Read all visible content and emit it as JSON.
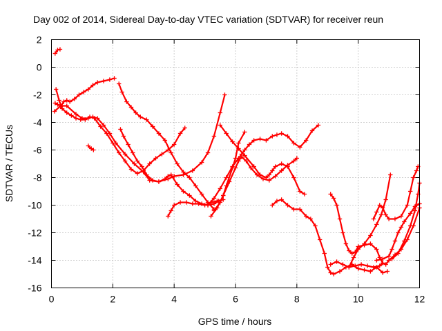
{
  "chart_data": {
    "type": "scatter",
    "title": "Day 002 of 2014, Sidereal Day-to-day VTEC variation (SDTVAR) for receiver reun",
    "xlabel": "GPS time / hours",
    "ylabel": "SDTVAR / TECUs",
    "xlim": [
      0,
      12
    ],
    "ylim": [
      -16,
      2
    ],
    "xticks": [
      0,
      2,
      4,
      6,
      8,
      10,
      12
    ],
    "yticks": [
      -16,
      -14,
      -12,
      -10,
      -8,
      -6,
      -4,
      -2,
      0,
      2
    ],
    "grid": true,
    "marker": "plus",
    "color": "#ff0000",
    "series": [
      {
        "x": [
          0.12,
          0.2,
          0.28
        ],
        "y": [
          1.0,
          1.25,
          1.3
        ]
      },
      {
        "x": [
          0.12,
          0.2,
          0.3,
          0.4,
          0.5,
          0.6,
          0.75,
          0.9,
          1.05,
          1.2,
          1.35,
          1.5,
          1.7,
          1.9,
          2.05
        ],
        "y": [
          -2.6,
          -2.7,
          -2.85,
          -2.5,
          -2.4,
          -2.5,
          -2.3,
          -2.0,
          -1.8,
          -1.6,
          -1.3,
          -1.1,
          -1.0,
          -0.9,
          -0.8
        ]
      },
      {
        "x": [
          0.15,
          0.25,
          0.35,
          0.5,
          0.65,
          0.8,
          0.95,
          1.1,
          1.25,
          1.4,
          1.6,
          1.8,
          2.0,
          2.2,
          2.4,
          2.6,
          2.8,
          3.0,
          3.2,
          3.4,
          3.6,
          3.8,
          4.0,
          4.2,
          4.35
        ],
        "y": [
          -1.6,
          -2.4,
          -3.0,
          -3.3,
          -3.5,
          -3.7,
          -3.8,
          -3.8,
          -3.6,
          -3.7,
          -4.3,
          -4.8,
          -5.5,
          -6.2,
          -6.8,
          -7.4,
          -7.7,
          -7.5,
          -7.0,
          -6.6,
          -6.3,
          -6.0,
          -5.6,
          -4.8,
          -4.4
        ]
      },
      {
        "x": [
          0.1,
          0.3,
          0.5,
          0.8,
          1.0,
          1.2,
          1.35,
          1.5,
          1.7,
          1.9,
          2.1,
          2.4,
          2.7,
          3.0,
          3.2,
          3.5,
          3.8,
          4.0,
          4.3,
          4.6,
          4.9,
          5.1,
          5.3,
          5.5,
          5.65
        ],
        "y": [
          -3.2,
          -2.8,
          -2.8,
          -3.4,
          -3.7,
          -3.7,
          -3.6,
          -3.7,
          -4.2,
          -4.8,
          -5.5,
          -6.3,
          -7.0,
          -7.6,
          -8.2,
          -8.3,
          -8.1,
          -7.9,
          -7.8,
          -7.5,
          -6.9,
          -6.2,
          -5.0,
          -3.3,
          -2.0
        ]
      },
      {
        "x": [
          1.2,
          1.3,
          1.37
        ],
        "y": [
          -5.7,
          -5.9,
          -6.0
        ]
      },
      {
        "x": [
          2.2,
          2.3,
          2.45,
          2.6,
          2.75,
          2.9,
          3.1,
          3.3,
          3.5,
          3.7,
          3.9,
          4.1,
          4.3,
          4.5,
          4.7,
          4.9,
          5.1,
          5.3
        ],
        "y": [
          -1.2,
          -1.8,
          -2.5,
          -2.9,
          -3.3,
          -3.6,
          -3.8,
          -4.3,
          -4.8,
          -5.3,
          -6.2,
          -7.0,
          -7.6,
          -8.0,
          -8.6,
          -9.2,
          -9.8,
          -10.3
        ]
      },
      {
        "x": [
          2.25,
          2.35,
          2.5,
          2.65,
          2.8,
          2.95,
          3.1,
          3.3,
          3.5,
          3.7,
          3.8,
          3.9,
          4.1,
          4.3,
          4.5,
          4.7,
          4.9,
          5.1,
          5.3,
          5.45
        ],
        "y": [
          -4.5,
          -5.0,
          -5.6,
          -6.2,
          -6.8,
          -7.2,
          -7.8,
          -8.2,
          -8.3,
          -8.1,
          -7.9,
          -7.8,
          -8.5,
          -9.0,
          -9.3,
          -9.7,
          -9.9,
          -10.0,
          -9.9,
          -9.7
        ]
      },
      {
        "x": [
          3.8,
          3.9,
          4.0,
          4.2,
          4.4,
          4.6,
          4.8,
          5.0,
          5.2,
          5.4,
          5.6
        ],
        "y": [
          -10.8,
          -10.4,
          -10.0,
          -9.8,
          -9.8,
          -9.9,
          -9.9,
          -10.0,
          -9.8,
          -9.7,
          -9.6
        ]
      },
      {
        "x": [
          5.5,
          5.7,
          5.9,
          6.1,
          6.3,
          6.6,
          6.8,
          7.0,
          7.1,
          7.2,
          7.3,
          7.5,
          7.7,
          7.9,
          8.1,
          8.25
        ],
        "y": [
          -4.2,
          -4.8,
          -5.4,
          -5.9,
          -6.4,
          -7.2,
          -7.8,
          -8.0,
          -7.8,
          -7.5,
          -7.2,
          -7.0,
          -7.2,
          -8.0,
          -9.0,
          -9.2
        ]
      },
      {
        "x": [
          5.1,
          5.3,
          5.5,
          5.7,
          5.9,
          6.1,
          6.2,
          6.3,
          6.45,
          6.6,
          6.8,
          7.0,
          7.2,
          7.35,
          7.5,
          7.7,
          7.9,
          8.1,
          8.3,
          8.5,
          8.7
        ],
        "y": [
          -10.0,
          -9.5,
          -8.8,
          -8.0,
          -7.2,
          -6.6,
          -6.3,
          -6.0,
          -5.6,
          -5.3,
          -5.2,
          -5.3,
          -5.0,
          -4.9,
          -4.8,
          -5.0,
          -5.5,
          -5.8,
          -5.3,
          -4.6,
          -4.2
        ]
      },
      {
        "x": [
          5.2,
          5.4,
          5.6,
          5.8,
          6.0,
          6.1,
          6.2,
          6.35,
          6.5,
          6.7,
          6.9,
          7.1,
          7.3,
          7.5,
          7.7,
          7.9,
          8.0
        ],
        "y": [
          -10.8,
          -10.2,
          -9.3,
          -8.3,
          -7.3,
          -6.8,
          -6.5,
          -6.8,
          -7.3,
          -7.8,
          -8.1,
          -8.2,
          -7.9,
          -7.5,
          -7.1,
          -6.8,
          -6.6
        ]
      },
      {
        "x": [
          5.3,
          5.5,
          5.6,
          5.7,
          5.9,
          6.0,
          6.1,
          6.3
        ],
        "y": [
          -10.4,
          -9.8,
          -9.3,
          -8.6,
          -7.3,
          -6.6,
          -5.5,
          -4.7
        ]
      },
      {
        "x": [
          7.2,
          7.35,
          7.5,
          7.7,
          7.9,
          8.1,
          8.3,
          8.45,
          8.6,
          8.75,
          8.9,
          9.0,
          9.1,
          9.2,
          9.4,
          9.6,
          9.8,
          10.0,
          10.2,
          10.4,
          10.6,
          10.8,
          10.95
        ],
        "y": [
          -10.0,
          -9.7,
          -9.6,
          -10.0,
          -10.3,
          -10.3,
          -10.8,
          -11.0,
          -11.5,
          -12.5,
          -13.5,
          -14.5,
          -14.9,
          -15.0,
          -14.8,
          -14.5,
          -14.3,
          -14.6,
          -14.7,
          -14.8,
          -14.5,
          -14.9,
          -14.8
        ]
      },
      {
        "x": [
          9.1,
          9.2,
          9.3,
          9.4,
          9.5,
          9.6,
          9.7,
          9.8,
          9.9,
          10.0,
          10.2,
          10.4,
          10.6,
          10.7,
          10.8,
          10.9,
          11.0,
          11.2,
          11.4,
          11.6,
          11.8,
          12.0
        ],
        "y": [
          -9.2,
          -9.5,
          -10.0,
          -11.0,
          -12.0,
          -12.8,
          -13.3,
          -13.5,
          -13.4,
          -13.0,
          -12.9,
          -12.8,
          -13.2,
          -13.8,
          -14.2,
          -14.3,
          -14.0,
          -13.6,
          -13.2,
          -12.5,
          -11.5,
          -10.2
        ]
      },
      {
        "x": [
          9.1,
          9.3,
          9.5,
          9.7,
          9.9,
          10.1,
          10.3,
          10.5,
          10.7,
          10.8
        ],
        "y": [
          -14.3,
          -14.1,
          -14.3,
          -14.5,
          -14.4,
          -14.3,
          -14.4,
          -14.5,
          -14.4,
          -14.2
        ]
      },
      {
        "x": [
          9.7,
          9.85,
          10.0,
          10.2,
          10.4,
          10.6,
          10.75,
          10.9,
          11.05
        ],
        "y": [
          -14.5,
          -13.8,
          -13.2,
          -12.8,
          -12.2,
          -11.4,
          -10.7,
          -9.6,
          -7.8
        ]
      },
      {
        "x": [
          10.5,
          10.6,
          10.7,
          10.8,
          10.9,
          11.0,
          11.2,
          11.4,
          11.6,
          11.7,
          11.8,
          11.9,
          11.95
        ],
        "y": [
          -11.0,
          -10.5,
          -10.0,
          -10.2,
          -10.7,
          -11.0,
          -11.0,
          -10.8,
          -10.0,
          -9.0,
          -8.0,
          -7.5,
          -7.2
        ]
      },
      {
        "x": [
          10.6,
          10.8,
          11.0,
          11.1,
          11.2,
          11.3,
          11.4,
          11.5,
          11.7,
          11.85,
          12.0
        ],
        "y": [
          -14.0,
          -13.9,
          -13.7,
          -13.2,
          -12.6,
          -12.0,
          -11.6,
          -11.2,
          -10.6,
          -10.1,
          -9.9
        ]
      },
      {
        "x": [
          11.1,
          11.3,
          11.5,
          11.7,
          11.85,
          11.95,
          12.0
        ],
        "y": [
          -13.9,
          -13.5,
          -12.6,
          -11.5,
          -10.4,
          -9.2,
          -8.4
        ]
      }
    ]
  }
}
